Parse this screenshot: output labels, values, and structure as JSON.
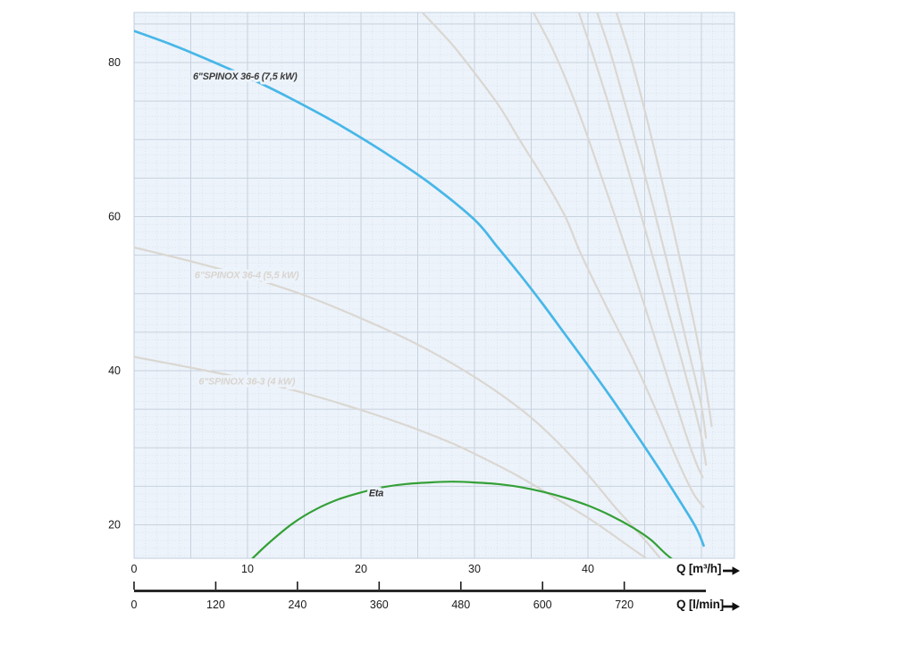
{
  "chart_data": {
    "type": "line",
    "title": "",
    "description": "Submersible pump performance curves: head H [m] vs flow Q",
    "plot": {
      "background": "#edf3fa",
      "grid_major_color": "#c7d2de",
      "grid_minor_color": "#d5e1ee",
      "border_color": "#c0cfdf",
      "grid": "major every 5 units, dotted minor every 1 unit"
    },
    "y_axis": {
      "tick_labels": [
        20,
        40,
        60,
        80
      ],
      "min": 15.6,
      "max": 86.5,
      "major_step": 5
    },
    "x_axis_m3h": {
      "title": "Q [m³/h]",
      "tick_labels": [
        0,
        10,
        20,
        30,
        40
      ],
      "min": 0,
      "max": 52.9,
      "major_step": 5
    },
    "x_axis_lmin": {
      "title": "Q [l/min]",
      "tick_labels": [
        0,
        120,
        240,
        360,
        480,
        600,
        720
      ],
      "axis_color": "#1a1a1a"
    },
    "series": [
      {
        "id": "spinox-36-4",
        "label": "6\"SPINOX 36-4 (5,5 kW)",
        "color": "#dad7d2",
        "width": 2.2,
        "label_color": "#d8d5d0",
        "label_q": 5.35,
        "label_h": 52.0,
        "points": [
          [
            0,
            56.0
          ],
          [
            5,
            54.2
          ],
          [
            10,
            52.2
          ],
          [
            15,
            49.8
          ],
          [
            20,
            46.8
          ],
          [
            25,
            43.4
          ],
          [
            30,
            39.2
          ],
          [
            34,
            35.1
          ],
          [
            37,
            31.2
          ],
          [
            40,
            26.5
          ],
          [
            42.5,
            22.1
          ],
          [
            44.5,
            18.9
          ],
          [
            46.3,
            15.8
          ]
        ]
      },
      {
        "id": "spinox-36-3",
        "label": "6\"SPINOX 36-3 (4 kW)",
        "color": "#dad7d2",
        "width": 2.2,
        "label_color": "#d8d5d0",
        "label_q": 5.7,
        "label_h": 38.2,
        "points": [
          [
            0,
            41.8
          ],
          [
            5,
            40.4
          ],
          [
            10,
            38.9
          ],
          [
            15,
            37.1
          ],
          [
            20,
            34.9
          ],
          [
            24,
            32.9
          ],
          [
            28,
            30.6
          ],
          [
            31,
            28.5
          ],
          [
            34,
            26.2
          ],
          [
            37,
            23.6
          ],
          [
            40,
            20.9
          ],
          [
            42,
            18.9
          ],
          [
            44,
            16.8
          ],
          [
            45.2,
            15.6
          ]
        ]
      },
      {
        "id": "background-curve-1",
        "label": "",
        "color": "#dad7d2",
        "width": 2.2,
        "points": [
          [
            25.4,
            86.5
          ],
          [
            28,
            82.4
          ],
          [
            30.2,
            78.3
          ],
          [
            32.2,
            74.3
          ],
          [
            34,
            69.9
          ],
          [
            36,
            65.2
          ],
          [
            38,
            60.0
          ],
          [
            39.4,
            55.1
          ],
          [
            41.7,
            48.1
          ],
          [
            43.9,
            41.7
          ],
          [
            45.7,
            35.9
          ],
          [
            47.2,
            30.7
          ],
          [
            48.4,
            26.7
          ],
          [
            49.4,
            23.8
          ],
          [
            50.2,
            22.3
          ]
        ]
      },
      {
        "id": "background-curve-2",
        "label": "",
        "color": "#dad7d2",
        "width": 2.2,
        "points": [
          [
            35.2,
            86.5
          ],
          [
            36.8,
            82.0
          ],
          [
            38.2,
            77.3
          ],
          [
            39.6,
            71.9
          ],
          [
            41,
            66.0
          ],
          [
            42.4,
            60.0
          ],
          [
            43.8,
            53.8
          ],
          [
            45.2,
            47.5
          ],
          [
            46.5,
            41.5
          ],
          [
            47.7,
            36.0
          ],
          [
            48.8,
            31.0
          ],
          [
            49.6,
            27.8
          ],
          [
            50.1,
            26.2
          ]
        ]
      },
      {
        "id": "background-curve-3",
        "label": "",
        "color": "#dad7d2",
        "width": 2.2,
        "points": [
          [
            39.2,
            86.5
          ],
          [
            40.4,
            81.2
          ],
          [
            41.7,
            75.2
          ],
          [
            43,
            68.8
          ],
          [
            44.3,
            62.2
          ],
          [
            45.6,
            55.4
          ],
          [
            46.9,
            48.6
          ],
          [
            48.1,
            42.2
          ],
          [
            49.2,
            36.2
          ],
          [
            50,
            31.4
          ],
          [
            50.4,
            27.8
          ]
        ]
      },
      {
        "id": "background-curve-4",
        "label": "",
        "color": "#dad7d2",
        "width": 2.2,
        "points": [
          [
            40.8,
            86.5
          ],
          [
            42,
            81.2
          ],
          [
            43.2,
            75.0
          ],
          [
            44.5,
            68.2
          ],
          [
            45.8,
            61.0
          ],
          [
            47,
            54.0
          ],
          [
            48.1,
            47.3
          ],
          [
            49.2,
            40.6
          ],
          [
            50,
            35.4
          ],
          [
            50.4,
            31.3
          ]
        ]
      },
      {
        "id": "background-curve-5",
        "label": "",
        "color": "#dad7d2",
        "width": 2.2,
        "points": [
          [
            42.5,
            86.5
          ],
          [
            43.7,
            81.0
          ],
          [
            44.9,
            74.4
          ],
          [
            46.1,
            67.2
          ],
          [
            47.3,
            59.8
          ],
          [
            48.4,
            52.6
          ],
          [
            49.4,
            45.8
          ],
          [
            50.2,
            39.6
          ],
          [
            50.7,
            34.9
          ],
          [
            50.9,
            32.8
          ]
        ]
      },
      {
        "id": "eta",
        "label": "Eta",
        "color": "#34a037",
        "width": 2.2,
        "label_color": "#2e2e2e",
        "label_q": 20.7,
        "label_h": 23.7,
        "points": [
          [
            10.4,
            15.6
          ],
          [
            12,
            17.8
          ],
          [
            14,
            20.2
          ],
          [
            16,
            22.0
          ],
          [
            18,
            23.3
          ],
          [
            20,
            24.2
          ],
          [
            22,
            24.9
          ],
          [
            24,
            25.3
          ],
          [
            26,
            25.5
          ],
          [
            28,
            25.6
          ],
          [
            30,
            25.5
          ],
          [
            32,
            25.3
          ],
          [
            34,
            24.9
          ],
          [
            36,
            24.3
          ],
          [
            38,
            23.5
          ],
          [
            40,
            22.5
          ],
          [
            42,
            21.2
          ],
          [
            44,
            19.6
          ],
          [
            45.5,
            18.1
          ],
          [
            46.8,
            16.3
          ],
          [
            47.9,
            15.0
          ]
        ]
      },
      {
        "id": "spinox-36-6",
        "label": "6\"SPINOX 36-6 (7,5 kW)",
        "color": "#47b7e8",
        "width": 2.7,
        "label_color": "#3b3b3b",
        "label_q": 5.2,
        "label_h": 77.8,
        "points": [
          [
            0,
            84.1
          ],
          [
            3,
            82.5
          ],
          [
            6,
            80.7
          ],
          [
            10,
            78.1
          ],
          [
            14,
            75.2
          ],
          [
            18,
            72.0
          ],
          [
            22,
            68.4
          ],
          [
            26,
            64.4
          ],
          [
            30,
            59.6
          ],
          [
            32,
            56.1
          ],
          [
            34,
            52.5
          ],
          [
            36,
            48.7
          ],
          [
            38,
            44.7
          ],
          [
            40,
            40.7
          ],
          [
            42,
            36.6
          ],
          [
            44,
            32.3
          ],
          [
            46,
            27.9
          ],
          [
            48,
            23.3
          ],
          [
            49.5,
            19.7
          ],
          [
            50.2,
            17.3
          ]
        ]
      }
    ]
  }
}
